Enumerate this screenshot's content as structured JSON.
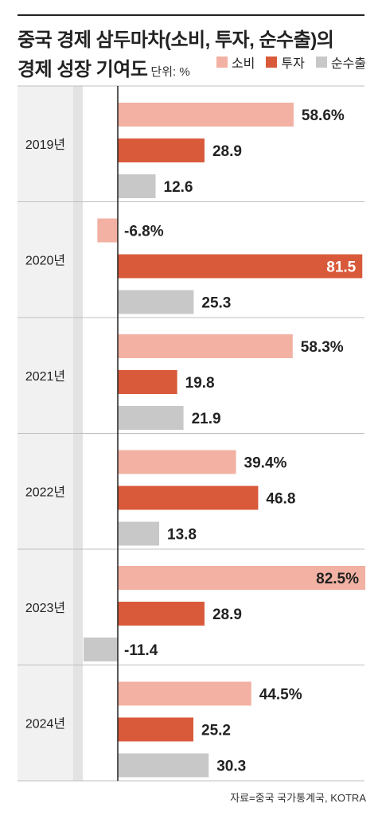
{
  "header": {
    "title_line1": "중국 경제 삼두마차(소비, 투자, 순수출)의",
    "title_line2": "경제 성장 기여도",
    "unit": "단위: %"
  },
  "colors": {
    "consumption": "#f2b1a3",
    "investment": "#d95a3b",
    "net_exports": "#c8c8c8"
  },
  "source": "자료=중국 국가통계국, KOTRA",
  "chart_data": {
    "type": "bar",
    "orientation": "horizontal",
    "title": "중국 경제 삼두마차(소비, 투자, 순수출)의 경제 성장 기여도",
    "unit": "단위: %",
    "categories": [
      "2019년",
      "2020년",
      "2021년",
      "2022년",
      "2023년",
      "2024년"
    ],
    "series": [
      {
        "name": "소비",
        "values": [
          58.6,
          -6.8,
          58.3,
          39.4,
          82.5,
          44.5
        ],
        "labels": [
          "58.6%",
          "-6.8%",
          "58.3%",
          "39.4%",
          "82.5%",
          "44.5%"
        ]
      },
      {
        "name": "투자",
        "values": [
          28.9,
          81.5,
          19.8,
          46.8,
          28.9,
          25.2
        ],
        "labels": [
          "28.9",
          "81.5",
          "19.8",
          "46.8",
          "28.9",
          "25.2"
        ]
      },
      {
        "name": "순수출",
        "values": [
          12.6,
          25.3,
          21.9,
          13.8,
          -11.4,
          30.3
        ],
        "labels": [
          "12.6",
          "25.3",
          "21.9",
          "13.8",
          "-11.4",
          "30.3"
        ]
      }
    ],
    "legend_position": "top-right",
    "grid": false
  }
}
